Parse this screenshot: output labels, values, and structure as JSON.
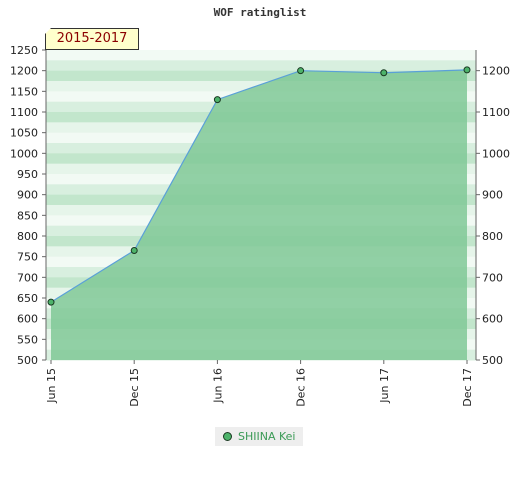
{
  "chart_data": {
    "type": "area",
    "title": "WOF ratinglist",
    "period": "2015-2017",
    "categories": [
      "Jun 15",
      "Dec 15",
      "Jun 16",
      "Dec 16",
      "Jun 17",
      "Dec 17"
    ],
    "series": [
      {
        "name": "SHIINA Kei",
        "values": [
          640,
          765,
          1130,
          1200,
          1195,
          1202
        ]
      }
    ],
    "ylim": [
      500,
      1250
    ],
    "yticks_left": [
      500,
      550,
      600,
      650,
      700,
      750,
      800,
      850,
      900,
      950,
      1000,
      1050,
      1100,
      1150,
      1200,
      1250
    ],
    "yticks_right": [
      500,
      600,
      700,
      800,
      900,
      1000,
      1100,
      1200
    ],
    "grid": "horizontal bands",
    "legend_position": "bottom-center",
    "colors": {
      "line": "#5aa0d8",
      "area": "#80c896",
      "marker": "#4db36a",
      "title": "#333333",
      "period": "#8b0000",
      "legend_text": "#3a9a55"
    }
  }
}
